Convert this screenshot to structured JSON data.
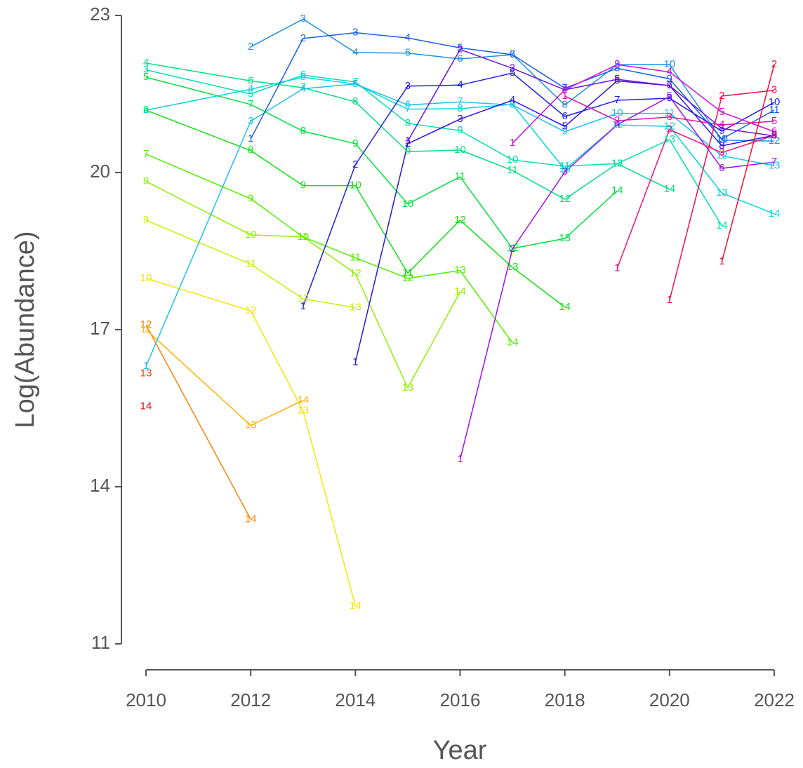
{
  "chart_data": {
    "type": "line",
    "x_label": "Year",
    "y_label": "Log(Abundance)",
    "xlim": [
      2010,
      2022
    ],
    "xticks": [
      2010,
      2012,
      2014,
      2016,
      2018,
      2020,
      2022
    ],
    "ylim": [
      11,
      23
    ],
    "yticks": [
      11,
      14,
      17,
      20,
      23
    ],
    "series": [
      {
        "color": "#ff0000",
        "x": [
          2010
        ],
        "values": [
          15.53
        ],
        "labels": [
          14
        ]
      },
      {
        "color": "#ff4000",
        "x": [
          2010
        ],
        "values": [
          16.16
        ],
        "labels": [
          13
        ]
      },
      {
        "color": "#ff8000",
        "x": [
          2010,
          2012
        ],
        "values": [
          17.09,
          13.38
        ],
        "labels": [
          12,
          14
        ]
      },
      {
        "color": "#ffb000",
        "x": [
          2010,
          2012,
          2013
        ],
        "values": [
          17.0,
          15.17,
          15.65
        ],
        "labels": [
          11,
          13,
          14
        ]
      },
      {
        "color": "#f5e600",
        "x": [
          2010,
          2012,
          2013,
          2014
        ],
        "values": [
          17.98,
          17.36,
          15.45,
          11.72
        ],
        "labels": [
          10,
          12,
          13,
          14
        ]
      },
      {
        "color": "#c8f000",
        "x": [
          2010,
          2012,
          2013,
          2014
        ],
        "values": [
          19.09,
          18.25,
          17.59,
          17.42
        ],
        "labels": [
          9,
          11,
          12,
          13
        ]
      },
      {
        "color": "#8ff000",
        "x": [
          2010,
          2012,
          2013,
          2014,
          2015,
          2016
        ],
        "values": [
          19.83,
          18.81,
          18.77,
          18.07,
          15.89,
          17.72
        ],
        "labels": [
          8,
          10,
          11,
          12,
          13,
          14
        ]
      },
      {
        "color": "#50f000",
        "x": [
          2010,
          2012,
          2013,
          2014,
          2015,
          2016,
          2017
        ],
        "values": [
          20.35,
          19.5,
          18.77,
          18.37,
          17.98,
          18.13,
          16.75
        ],
        "labels": [
          7,
          9,
          10,
          11,
          12,
          13,
          14
        ]
      },
      {
        "color": "#10e010",
        "x": [
          2010,
          2012,
          2013,
          2014,
          2015,
          2016,
          2017,
          2018
        ],
        "values": [
          21.19,
          20.42,
          19.75,
          19.75,
          18.08,
          19.09,
          18.19,
          17.43
        ],
        "labels": [
          6,
          8,
          9,
          10,
          11,
          12,
          13,
          14
        ]
      },
      {
        "color": "#00e040",
        "x": [
          2010,
          2012,
          2013,
          2014,
          2015,
          2016,
          2017,
          2018,
          2019
        ],
        "values": [
          21.82,
          21.3,
          20.79,
          20.55,
          19.4,
          19.92,
          18.55,
          18.74,
          19.65
        ],
        "labels": [
          5,
          7,
          8,
          9,
          10,
          11,
          12,
          13,
          14
        ]
      },
      {
        "color": "#00e080",
        "x": [
          2010,
          2012,
          2013,
          2014,
          2015,
          2016,
          2017,
          2018,
          2019,
          2020
        ],
        "values": [
          22.09,
          21.75,
          21.62,
          21.35,
          20.4,
          20.43,
          20.04,
          19.49,
          20.17,
          19.68
        ],
        "labels": [
          4,
          6,
          7,
          8,
          9,
          10,
          11,
          12,
          13,
          14
        ]
      },
      {
        "color": "#00e0b0",
        "x": [
          2010,
          2012,
          2013,
          2014,
          2015,
          2016,
          2017,
          2018,
          2019,
          2020,
          2021
        ],
        "values": [
          21.96,
          21.5,
          21.86,
          21.73,
          20.94,
          20.8,
          20.24,
          20.12,
          20.17,
          20.63,
          18.98
        ],
        "labels": [
          3,
          5,
          6,
          7,
          8,
          9,
          10,
          11,
          12,
          13,
          14
        ]
      },
      {
        "color": "#00d8e0",
        "x": [
          2010,
          2012,
          2013,
          2014,
          2015,
          2016,
          2017,
          2018,
          2019,
          2020,
          2021,
          2022
        ],
        "values": [
          21.19,
          21.59,
          21.82,
          21.69,
          21.21,
          21.22,
          21.3,
          20.06,
          20.91,
          20.88,
          19.61,
          19.21
        ],
        "labels": [
          2,
          4,
          5,
          6,
          7,
          8,
          9,
          10,
          11,
          12,
          13,
          14
        ]
      },
      {
        "color": "#20c0f0",
        "x": [
          2010,
          2012,
          2013,
          2014,
          2015,
          2016,
          2017,
          2018,
          2019,
          2020,
          2021,
          2022
        ],
        "values": [
          16.3,
          20.98,
          21.6,
          21.69,
          21.29,
          21.35,
          21.29,
          20.78,
          21.13,
          21.13,
          20.32,
          20.13
        ],
        "labels": [
          1,
          3,
          4,
          5,
          6,
          7,
          8,
          9,
          10,
          11,
          12,
          13
        ]
      },
      {
        "color": "#1a90e8",
        "x": [
          2012,
          2013,
          2014,
          2015,
          2016,
          2017,
          2018,
          2019,
          2020,
          2021,
          2022
        ],
        "values": [
          22.4,
          22.93,
          22.29,
          22.28,
          22.17,
          22.25,
          21.29,
          22.06,
          22.06,
          20.62,
          20.6
        ],
        "labels": [
          2,
          3,
          4,
          5,
          6,
          7,
          8,
          9,
          10,
          11,
          12
        ]
      },
      {
        "color": "#1a60e0",
        "x": [
          2012,
          2013,
          2014,
          2015,
          2016,
          2017,
          2018,
          2019,
          2020,
          2021,
          2022
        ],
        "values": [
          20.64,
          22.56,
          22.67,
          22.57,
          22.38,
          22.25,
          21.61,
          21.99,
          21.79,
          20.64,
          21.19
        ],
        "labels": [
          1,
          2,
          3,
          4,
          5,
          6,
          7,
          8,
          9,
          10,
          11
        ]
      },
      {
        "color": "#1a20e0",
        "x": [
          2013,
          2014,
          2015,
          2016,
          2017,
          2018,
          2019,
          2020,
          2021,
          2022
        ],
        "values": [
          17.44,
          20.15,
          21.65,
          21.67,
          21.9,
          21.07,
          21.38,
          21.42,
          20.79,
          21.34
        ],
        "labels": [
          1,
          2,
          3,
          4,
          5,
          6,
          7,
          8,
          9,
          10
        ]
      },
      {
        "color": "#3010e0",
        "x": [
          2014,
          2015,
          2016,
          2017,
          2018,
          2019,
          2020,
          2021,
          2022
        ],
        "values": [
          16.38,
          20.55,
          21.02,
          21.38,
          20.88,
          21.75,
          21.66,
          20.51,
          20.71
        ],
        "labels": [
          1,
          2,
          3,
          4,
          5,
          6,
          7,
          8,
          9
        ]
      },
      {
        "color": "#7010e0",
        "x": [
          2015,
          2016,
          2017,
          2018,
          2019,
          2020,
          2021,
          2022
        ],
        "values": [
          20.6,
          22.35,
          21.99,
          21.58,
          21.78,
          21.66,
          20.84,
          20.7
        ],
        "labels": [
          1,
          2,
          3,
          4,
          5,
          6,
          7,
          8
        ]
      },
      {
        "color": "#a010e8",
        "x": [
          2016,
          2017,
          2018,
          2019,
          2020,
          2021,
          2022
        ],
        "values": [
          14.52,
          18.54,
          20.01,
          20.91,
          21.45,
          20.08,
          20.2
        ],
        "labels": [
          1,
          2,
          3,
          4,
          5,
          6,
          7
        ]
      },
      {
        "color": "#d010e0",
        "x": [
          2017,
          2018,
          2019,
          2020,
          2021,
          2022
        ],
        "values": [
          20.56,
          21.58,
          22.06,
          21.92,
          21.15,
          20.78
        ],
        "labels": [
          1,
          2,
          3,
          4,
          5,
          6
        ]
      },
      {
        "color": "#e010b0",
        "x": [
          2018,
          2019,
          2020,
          2021,
          2022
        ],
        "values": [
          21.46,
          20.99,
          21.06,
          20.91,
          20.98
        ],
        "labels": [
          1,
          2,
          3,
          4,
          5
        ]
      },
      {
        "color": "#f01080",
        "x": [
          2019,
          2020,
          2021,
          2022
        ],
        "values": [
          18.17,
          20.82,
          20.38,
          20.71
        ],
        "labels": [
          1,
          2,
          3,
          4
        ]
      },
      {
        "color": "#f01050",
        "x": [
          2020,
          2021,
          2022
        ],
        "values": [
          17.56,
          21.46,
          21.57
        ],
        "labels": [
          1,
          2,
          3
        ]
      },
      {
        "color": "#f01030",
        "x": [
          2021,
          2022
        ],
        "values": [
          18.3,
          22.06
        ],
        "labels": [
          1,
          2
        ]
      }
    ]
  }
}
